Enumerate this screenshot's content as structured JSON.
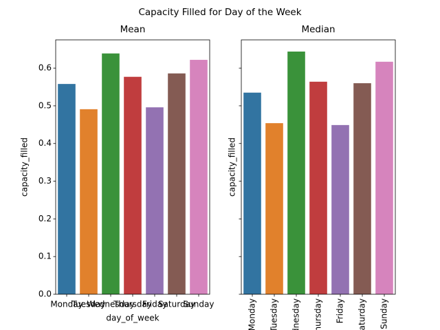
{
  "title": "Capacity Filled for Day of the Week",
  "chart_data": [
    {
      "type": "bar",
      "title": "Mean",
      "categories": [
        "Monday",
        "Tuesday",
        "Wednesday",
        "Thursday",
        "Friday",
        "Saturday",
        "Sunday"
      ],
      "values": [
        0.558,
        0.491,
        0.639,
        0.577,
        0.496,
        0.586,
        0.622
      ],
      "colors": [
        "#3274a1",
        "#e1812c",
        "#3a923a",
        "#c03d3e",
        "#9372b2",
        "#845b53",
        "#d684bd"
      ],
      "xlabel": "day_of_week",
      "ylabel": "capacity_filled",
      "ylim": [
        0,
        0.675
      ],
      "yticks": [
        {
          "value": 0,
          "label": "0.0"
        },
        {
          "value": 0.1,
          "label": "0.1"
        },
        {
          "value": 0.2,
          "label": "0.2"
        },
        {
          "value": 0.3,
          "label": "0.3"
        },
        {
          "value": 0.4,
          "label": "0.4"
        },
        {
          "value": 0.5,
          "label": "0.5"
        },
        {
          "value": 0.6,
          "label": "0.6"
        }
      ],
      "xtick_rotation": 0
    },
    {
      "type": "bar",
      "title": "Median",
      "categories": [
        "Monday",
        "Tuesday",
        "Wednesday",
        "Thursday",
        "Friday",
        "Saturday",
        "Sunday"
      ],
      "values": [
        0.535,
        0.454,
        0.644,
        0.564,
        0.449,
        0.56,
        0.617
      ],
      "colors": [
        "#3274a1",
        "#e1812c",
        "#3a923a",
        "#c03d3e",
        "#9372b2",
        "#845b53",
        "#d684bd"
      ],
      "ylabel": "capacity_filled",
      "ylim": [
        0,
        0.675
      ],
      "yticks": [
        0,
        0.1,
        0.2,
        0.3,
        0.4,
        0.5,
        0.6
      ],
      "xtick_rotation": 90
    }
  ]
}
